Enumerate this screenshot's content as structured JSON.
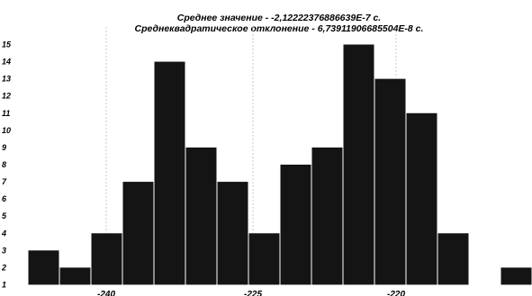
{
  "chart_data": {
    "type": "bar",
    "title": "Среднее значение - -2,12222376886639E-7 с.",
    "subtitle": "Среднеквадратическое отклонение - 6,73911906685504E-8 с.",
    "xlabel": "",
    "ylabel": "",
    "values": [
      3,
      2,
      4,
      7,
      14,
      9,
      7,
      4,
      8,
      9,
      15,
      13,
      11,
      4,
      1,
      2
    ],
    "y_ticks": [
      1,
      2,
      3,
      4,
      5,
      6,
      7,
      8,
      9,
      10,
      11,
      12,
      13,
      14,
      15
    ],
    "x_tick_labels": [
      "-240",
      "-225",
      "-220"
    ],
    "x_grid": true,
    "bar_color": "#141414",
    "grid_color": "#c8c8c8"
  }
}
